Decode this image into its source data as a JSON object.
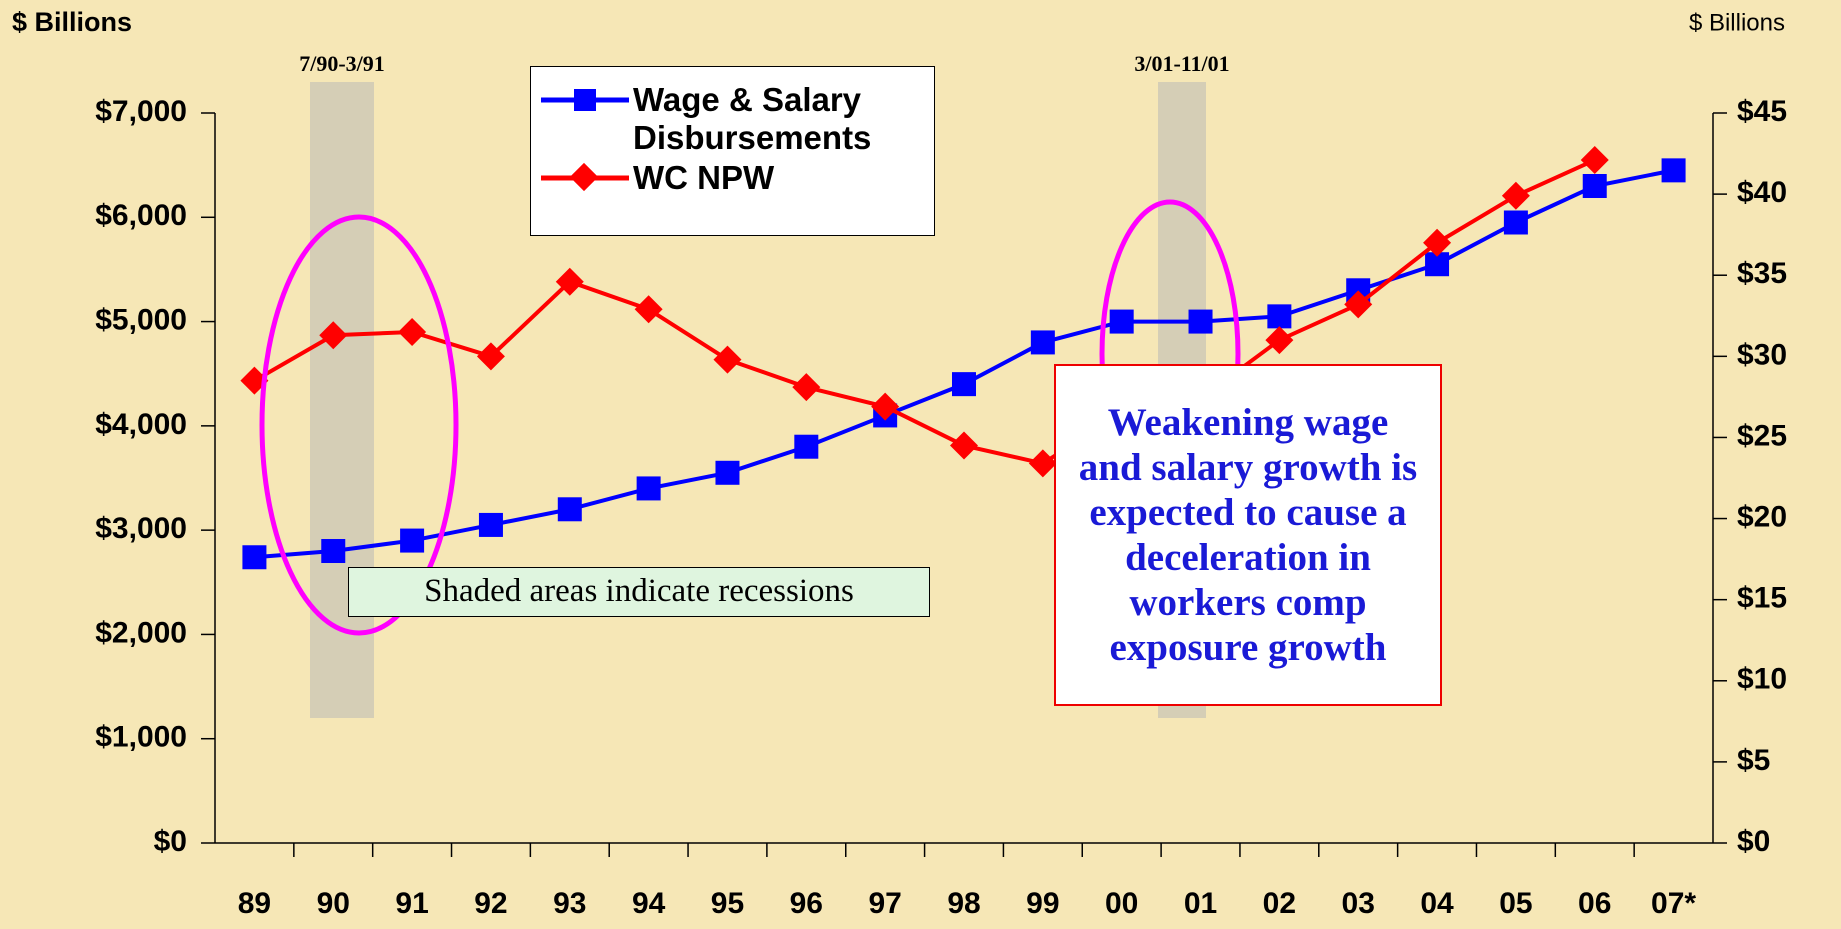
{
  "chart_data": {
    "type": "line",
    "y_label": "$ Billions",
    "y2_label": "$ Billions",
    "categories": [
      "89",
      "90",
      "91",
      "92",
      "93",
      "94",
      "95",
      "96",
      "97",
      "98",
      "99",
      "00",
      "01",
      "02",
      "03",
      "04",
      "05",
      "06",
      "07*"
    ],
    "series": [
      {
        "name": "Wage & Salary Disbursements",
        "color": "#0000ff",
        "values": [
          2740,
          2800,
          2900,
          3050,
          3200,
          3400,
          3550,
          3800,
          4100,
          4400,
          4800,
          5000,
          5000,
          5050,
          5300,
          5550,
          5950,
          6300,
          6450
        ]
      },
      {
        "name": "WC NPW",
        "color": "#ff0000",
        "axis": "y2",
        "values": [
          28.5,
          31.3,
          31.5,
          30.0,
          34.6,
          32.9,
          29.8,
          28.1,
          26.9,
          24.5,
          23.4,
          26.5,
          27.4,
          31.0,
          33.2,
          37.0,
          39.9,
          42.1,
          null
        ]
      }
    ],
    "ylim": [
      0,
      7000
    ],
    "yticks": [
      {
        "value": 0,
        "label": "$0"
      },
      {
        "value": 1000,
        "label": "$1,000"
      },
      {
        "value": 2000,
        "label": "$2,000"
      },
      {
        "value": 3000,
        "label": "$3,000"
      },
      {
        "value": 4000,
        "label": "$4,000"
      },
      {
        "value": 5000,
        "label": "$5,000"
      },
      {
        "value": 6000,
        "label": "$6,000"
      },
      {
        "value": 7000,
        "label": "$7,000"
      }
    ],
    "y2lim": [
      0,
      45
    ],
    "y2ticks": [
      {
        "value": 0,
        "label": "$0"
      },
      {
        "value": 5,
        "label": "$5"
      },
      {
        "value": 10,
        "label": "$10"
      },
      {
        "value": 15,
        "label": "$15"
      },
      {
        "value": 20,
        "label": "$20"
      },
      {
        "value": 25,
        "label": "$25"
      },
      {
        "value": 30,
        "label": "$30"
      },
      {
        "value": 35,
        "label": "$35"
      },
      {
        "value": 40,
        "label": "$40"
      },
      {
        "value": 45,
        "label": "$45"
      }
    ],
    "recession_labels": [
      "7/90-3/91",
      "3/01-11/01"
    ],
    "shading_note": "Shaded areas indicate recessions",
    "annotation": "Weakening wage and salary growth is expected to cause a deceleration in workers comp exposure growth"
  }
}
